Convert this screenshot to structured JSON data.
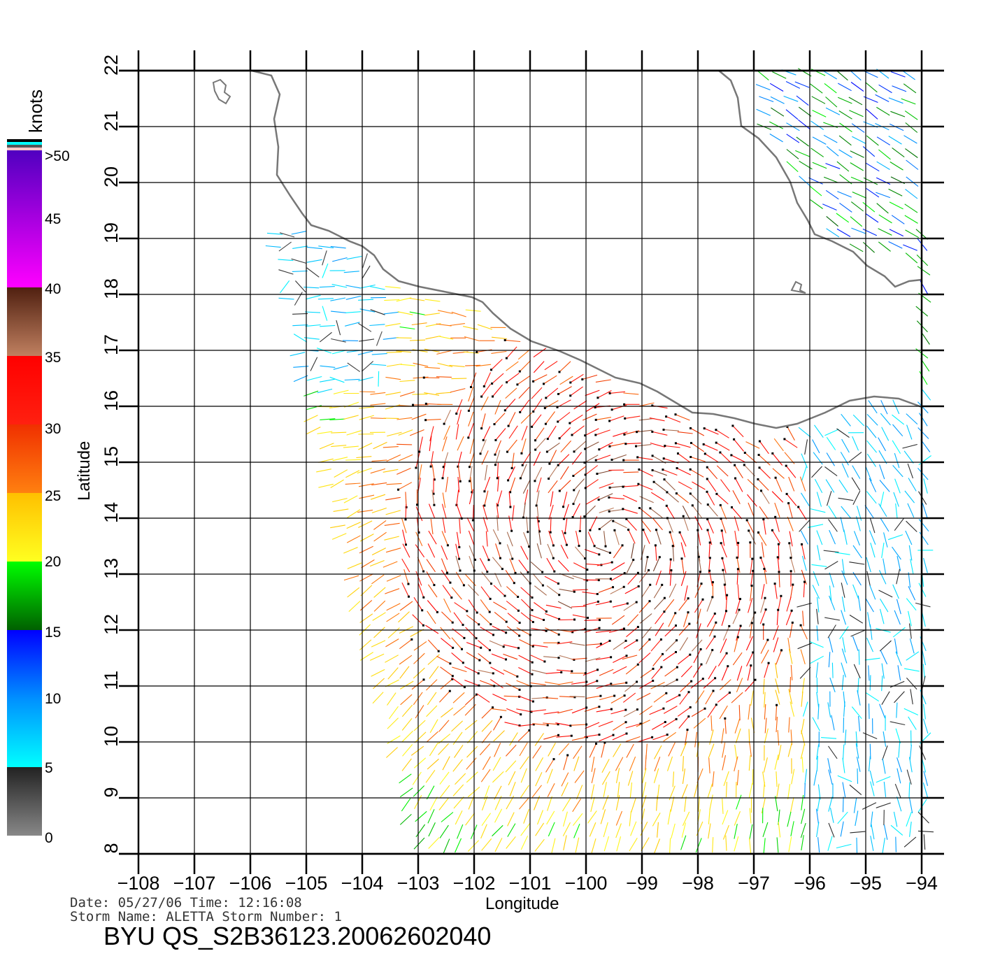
{
  "map": {
    "x_axis": {
      "label": "Longitude",
      "ticks": [
        "−108",
        "−107",
        "−106",
        "−105",
        "−104",
        "−103",
        "−102",
        "−101",
        "−100",
        "−99",
        "−98",
        "−97",
        "−96",
        "−95",
        "−94"
      ],
      "range": [
        -108,
        -94
      ]
    },
    "y_axis": {
      "label": "Latitude",
      "ticks": [
        "8",
        "9",
        "10",
        "11",
        "12",
        "13",
        "14",
        "15",
        "16",
        "17",
        "18",
        "19",
        "20",
        "21",
        "22"
      ],
      "range": [
        8,
        22
      ]
    },
    "grid": true,
    "storm_color_accent": "#ff0000"
  },
  "colorbar": {
    "units": "knots",
    "labels": [
      ">50",
      "45",
      "40",
      "35",
      "30",
      "25",
      "20",
      "15",
      "10",
      "5",
      "0"
    ],
    "stops": [
      {
        "knots": 0,
        "color": "#888888"
      },
      {
        "knots": 5,
        "color": "#222222"
      },
      {
        "knots": 5.01,
        "color": "#00ffff"
      },
      {
        "knots": 10,
        "color": "#0090ff"
      },
      {
        "knots": 15,
        "color": "#0000ff"
      },
      {
        "knots": 15.01,
        "color": "#006000"
      },
      {
        "knots": 20,
        "color": "#00ff00"
      },
      {
        "knots": 20.01,
        "color": "#ffff20"
      },
      {
        "knots": 25,
        "color": "#ffc000"
      },
      {
        "knots": 25.01,
        "color": "#ff8010"
      },
      {
        "knots": 30,
        "color": "#f03000"
      },
      {
        "knots": 30.01,
        "color": "#ff2010"
      },
      {
        "knots": 35,
        "color": "#ff0000"
      },
      {
        "knots": 35.01,
        "color": "#c08060"
      },
      {
        "knots": 40,
        "color": "#502010"
      },
      {
        "knots": 40.01,
        "color": "#ff00ff"
      },
      {
        "knots": 50,
        "color": "#5000c0"
      }
    ]
  },
  "info": {
    "date_line": "Date: 05/27/06   Time: 12:16:08",
    "storm_line": "Storm  Name: ALETTA   Storm  Number: 1",
    "title": "BYU  QS_S2B36123.20062602040"
  }
}
